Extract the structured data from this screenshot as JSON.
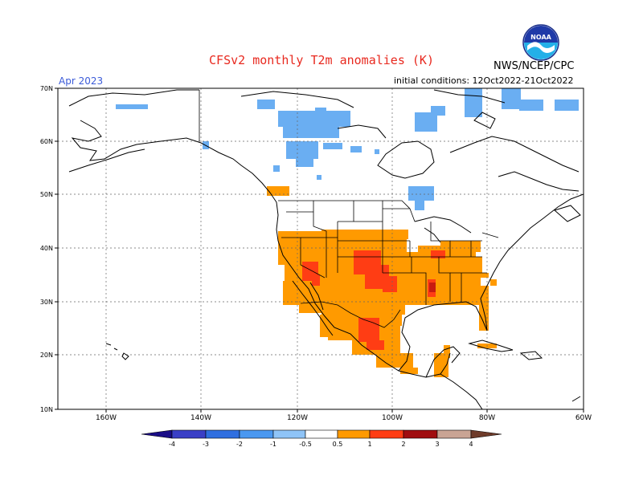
{
  "header": {
    "title": "CFSv2 monthly T2m anomalies (K)",
    "org": "NWS/NCEP/CPC",
    "month": "Apr 2023",
    "initial_conditions": "initial conditions: 12Oct2022-21Oct2022",
    "logo_text": "NOAA"
  },
  "axes": {
    "lat_labels": [
      "70N",
      "60N",
      "50N",
      "40N",
      "30N",
      "20N",
      "10N"
    ],
    "lon_labels": [
      "160W",
      "140W",
      "120W",
      "100W",
      "80W",
      "60W"
    ]
  },
  "colorbar": {
    "ticks": [
      "-4",
      "-3",
      "-2",
      "-1",
      "-0.5",
      "0.5",
      "1",
      "2",
      "3",
      "4"
    ],
    "colors": [
      "#1a0d86",
      "#3a3fc6",
      "#2f6fe0",
      "#4a98f0",
      "#8fc4f7",
      "#ffffff",
      "#ff9a00",
      "#ff3d14",
      "#a00d10",
      "#c9a494",
      "#6e3b2a"
    ]
  },
  "anomaly_colors": {
    "warm_light": "#ff9a00",
    "warm_mid": "#ff3d14",
    "warm_strong": "#c81a10",
    "cool_light": "#6aaef2"
  }
}
